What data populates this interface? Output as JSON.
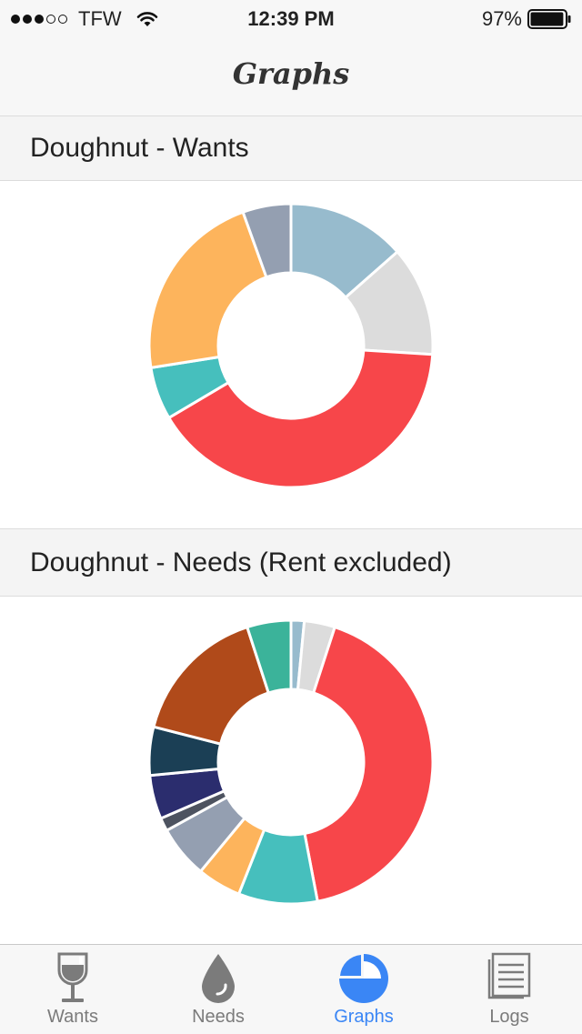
{
  "status_bar": {
    "carrier": "TFW",
    "time": "12:39 PM",
    "battery": "97%",
    "signal_filled": 3,
    "signal_total": 5,
    "battery_level": 0.97
  },
  "nav": {
    "title": "Graphs"
  },
  "sections": [
    {
      "title": "Doughnut - Wants"
    },
    {
      "title": "Doughnut - Needs (Rent excluded)"
    }
  ],
  "chart_data": [
    {
      "type": "doughnut",
      "title": "Doughnut - Wants",
      "slices": [
        {
          "value": 13.5,
          "color": "#97bbcd"
        },
        {
          "value": 12.5,
          "color": "#dcdcdc"
        },
        {
          "value": 40.5,
          "color": "#f7464a"
        },
        {
          "value": 6.0,
          "color": "#46bfbd"
        },
        {
          "value": 22.0,
          "color": "#fdb45c"
        },
        {
          "value": 5.5,
          "color": "#949fb1"
        }
      ]
    },
    {
      "type": "doughnut",
      "title": "Doughnut - Needs (Rent excluded)",
      "slices": [
        {
          "value": 1.5,
          "color": "#97bbcd"
        },
        {
          "value": 3.5,
          "color": "#dcdcdc"
        },
        {
          "value": 42.0,
          "color": "#f7464a"
        },
        {
          "value": 9.0,
          "color": "#46bfbd"
        },
        {
          "value": 5.0,
          "color": "#fdb45c"
        },
        {
          "value": 6.0,
          "color": "#949fb1"
        },
        {
          "value": 1.5,
          "color": "#4d5360"
        },
        {
          "value": 5.0,
          "color": "#2b2d6e"
        },
        {
          "value": 5.5,
          "color": "#1b3f55"
        },
        {
          "value": 16.0,
          "color": "#b04a1a"
        },
        {
          "value": 5.0,
          "color": "#3bb39a"
        }
      ]
    }
  ],
  "tabs": [
    {
      "label": "Wants",
      "icon": "wine-glass-icon",
      "active": false
    },
    {
      "label": "Needs",
      "icon": "drop-icon",
      "active": false
    },
    {
      "label": "Graphs",
      "icon": "pie-chart-icon",
      "active": true
    },
    {
      "label": "Logs",
      "icon": "document-list-icon",
      "active": false
    }
  ],
  "colors": {
    "accent": "#3a86f5",
    "inactive": "#7b7b7b"
  }
}
